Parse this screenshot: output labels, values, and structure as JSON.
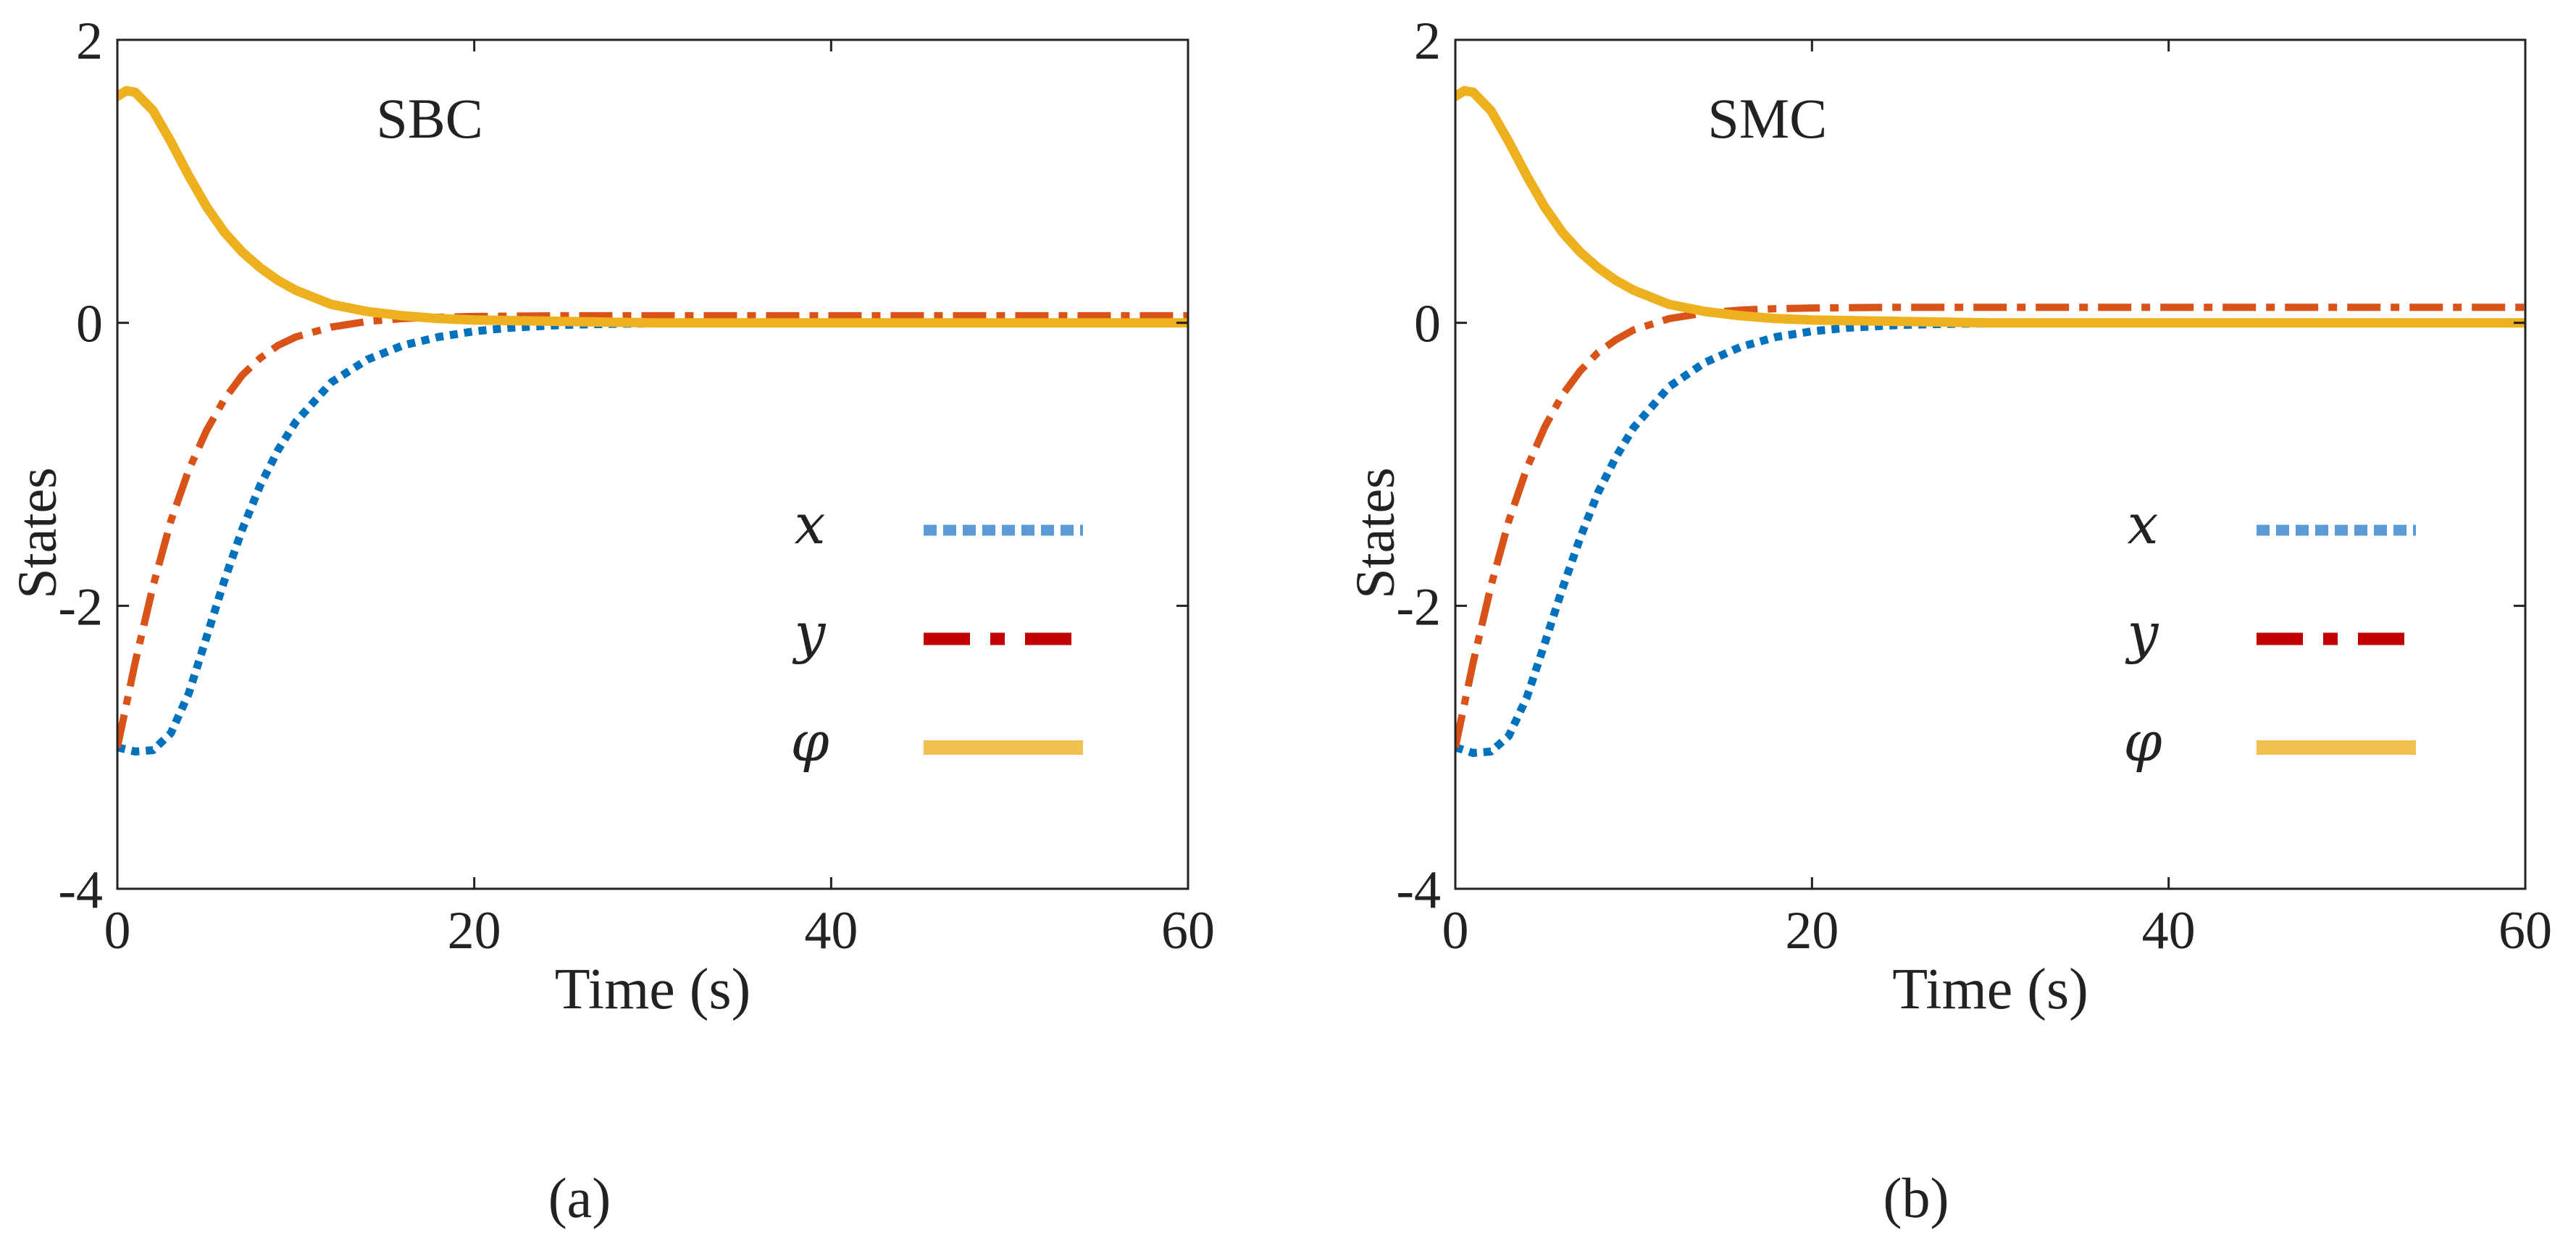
{
  "colors": {
    "x": "#0072BD",
    "y": "#D95319",
    "phi": "#EDB120",
    "legend_x": "#5B9BD5",
    "legend_y": "#C00000",
    "legend_phi": "#F0C050",
    "axis": "#222222"
  },
  "chart_data": [
    {
      "type": "line",
      "panel": "(a)",
      "title": "SBC",
      "xlabel": "Time (s)",
      "ylabel": "States",
      "xlim": [
        0,
        60
      ],
      "ylim": [
        -4,
        2
      ],
      "xticks": [
        0,
        20,
        40,
        60
      ],
      "xtick_labels": [
        "0",
        "20",
        "40",
        "60"
      ],
      "yticks": [
        -4,
        -2,
        0,
        2
      ],
      "ytick_labels": [
        "-4",
        "-2",
        "0",
        "2"
      ],
      "grid": false,
      "legend_position": "center-right",
      "series": [
        {
          "name": "x",
          "key": "x",
          "style": "dotted",
          "x": [
            0,
            1,
            2,
            3,
            4,
            5,
            6,
            7,
            8,
            9,
            10,
            12,
            14,
            16,
            18,
            20,
            22,
            25,
            28,
            32,
            36,
            40,
            50,
            60
          ],
          "y": [
            -3.0,
            -3.03,
            -3.02,
            -2.9,
            -2.62,
            -2.22,
            -1.82,
            -1.46,
            -1.15,
            -0.9,
            -0.7,
            -0.42,
            -0.26,
            -0.16,
            -0.1,
            -0.06,
            -0.035,
            -0.015,
            -0.007,
            -0.002,
            0.0,
            0.0,
            0.0,
            0.0
          ]
        },
        {
          "name": "y",
          "key": "y",
          "style": "dashdot",
          "x": [
            0,
            1,
            2,
            3,
            4,
            5,
            6,
            7,
            8,
            9,
            10,
            12,
            14,
            16,
            18,
            20,
            25,
            30,
            40,
            50,
            60
          ],
          "y": [
            -3.0,
            -2.4,
            -1.86,
            -1.4,
            -1.04,
            -0.76,
            -0.54,
            -0.37,
            -0.25,
            -0.16,
            -0.1,
            -0.03,
            0.01,
            0.03,
            0.04,
            0.045,
            0.05,
            0.05,
            0.05,
            0.05,
            0.05
          ]
        },
        {
          "name": "φ",
          "key": "phi",
          "style": "solid",
          "x": [
            0,
            0.5,
            1,
            2,
            3,
            4,
            5,
            6,
            7,
            8,
            9,
            10,
            12,
            14,
            16,
            18,
            20,
            25,
            30,
            40,
            50,
            60
          ],
          "y": [
            1.6,
            1.64,
            1.63,
            1.5,
            1.28,
            1.04,
            0.82,
            0.64,
            0.5,
            0.39,
            0.3,
            0.23,
            0.13,
            0.08,
            0.05,
            0.03,
            0.02,
            0.01,
            0.0,
            0.0,
            0.0,
            0.0
          ]
        }
      ]
    },
    {
      "type": "line",
      "panel": "(b)",
      "title": "SMC",
      "xlabel": "Time (s)",
      "ylabel": "States",
      "xlim": [
        0,
        60
      ],
      "ylim": [
        -4,
        2
      ],
      "xticks": [
        0,
        20,
        40,
        60
      ],
      "xtick_labels": [
        "0",
        "20",
        "40",
        "60"
      ],
      "yticks": [
        -4,
        -2,
        0,
        2
      ],
      "ytick_labels": [
        "-4",
        "-2",
        "0",
        "2"
      ],
      "grid": false,
      "legend_position": "center-right",
      "series": [
        {
          "name": "x",
          "key": "x",
          "style": "dotted",
          "x": [
            0,
            1,
            2,
            3,
            4,
            5,
            6,
            7,
            8,
            9,
            10,
            12,
            14,
            16,
            18,
            20,
            22,
            25,
            28,
            32,
            36,
            40,
            50,
            60
          ],
          "y": [
            -3.0,
            -3.04,
            -3.03,
            -2.92,
            -2.65,
            -2.27,
            -1.88,
            -1.52,
            -1.2,
            -0.95,
            -0.74,
            -0.45,
            -0.28,
            -0.17,
            -0.1,
            -0.06,
            -0.035,
            -0.015,
            -0.007,
            -0.002,
            0.0,
            0.0,
            0.0,
            0.0
          ]
        },
        {
          "name": "y",
          "key": "y",
          "style": "dashdot",
          "x": [
            0,
            1,
            2,
            3,
            4,
            5,
            6,
            7,
            8,
            9,
            10,
            12,
            14,
            16,
            18,
            20,
            25,
            30,
            40,
            50,
            60
          ],
          "y": [
            -3.0,
            -2.4,
            -1.86,
            -1.4,
            -1.03,
            -0.74,
            -0.51,
            -0.34,
            -0.21,
            -0.12,
            -0.05,
            0.03,
            0.07,
            0.09,
            0.1,
            0.105,
            0.11,
            0.11,
            0.11,
            0.11,
            0.11
          ]
        },
        {
          "name": "φ",
          "key": "phi",
          "style": "solid",
          "x": [
            0,
            0.5,
            1,
            2,
            3,
            4,
            5,
            6,
            7,
            8,
            9,
            10,
            12,
            14,
            16,
            18,
            20,
            25,
            30,
            40,
            50,
            60
          ],
          "y": [
            1.6,
            1.64,
            1.63,
            1.5,
            1.28,
            1.04,
            0.82,
            0.64,
            0.5,
            0.39,
            0.3,
            0.23,
            0.13,
            0.08,
            0.05,
            0.03,
            0.02,
            0.01,
            0.0,
            0.0,
            0.0,
            0.0
          ]
        }
      ]
    }
  ]
}
